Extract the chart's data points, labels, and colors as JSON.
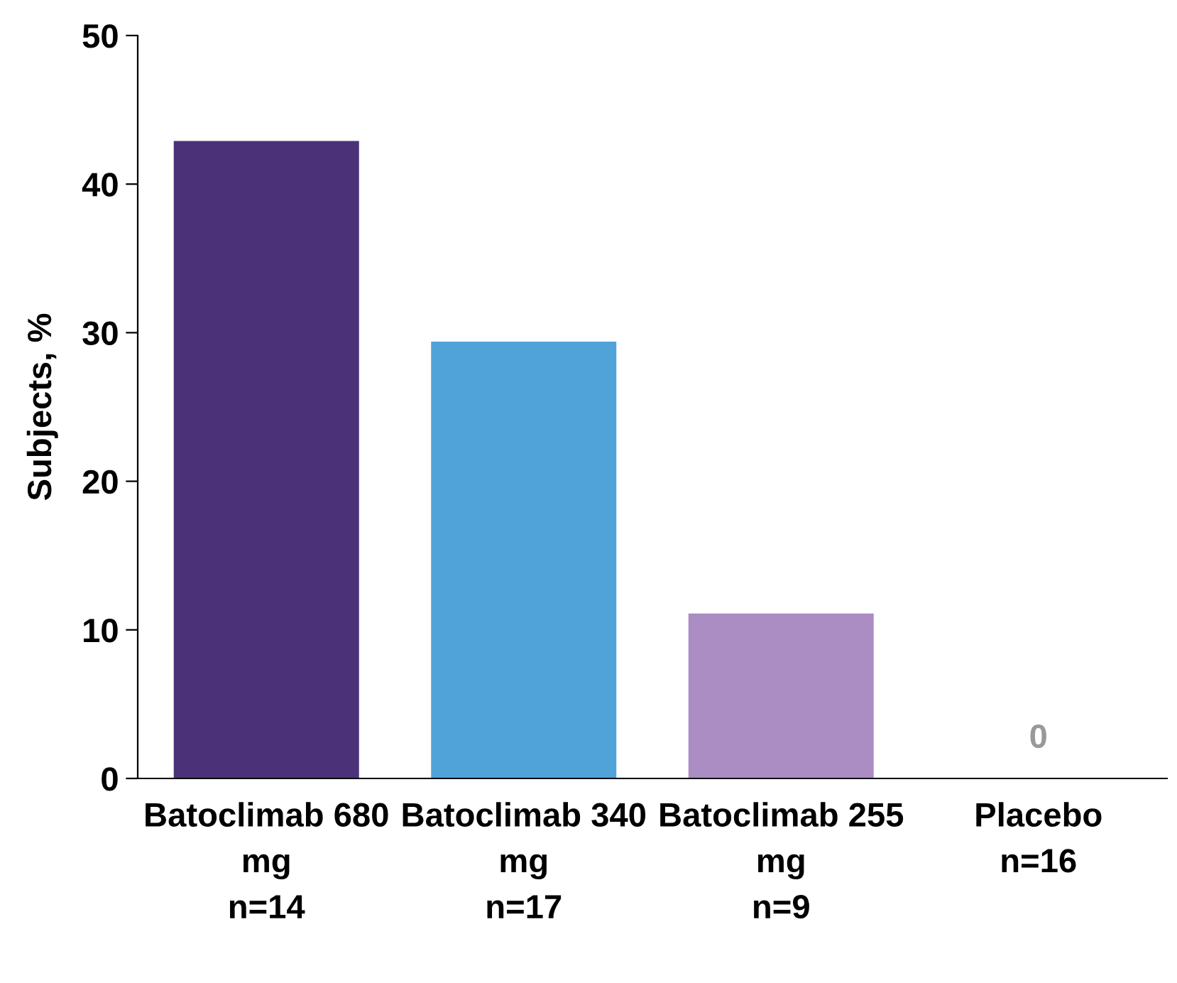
{
  "chart_data": {
    "type": "bar",
    "ylabel": "Subjects, %",
    "categories": [
      "Batoclimab 680\nmg\nn=14",
      "Batoclimab 340\nmg\nn=17",
      "Batoclimab 255\nmg\nn=9",
      "Placebo\nn=16"
    ],
    "values": [
      42.9,
      29.4,
      11.1,
      0
    ],
    "colors": [
      "#4b3278",
      "#4fa3d9",
      "#ab8cc3",
      "#999999"
    ],
    "value_labels": [
      null,
      null,
      null,
      "0"
    ],
    "ylim": [
      0,
      50
    ],
    "yticks": [
      0,
      10,
      20,
      30,
      40,
      50
    ],
    "grid": false,
    "legend": false
  }
}
